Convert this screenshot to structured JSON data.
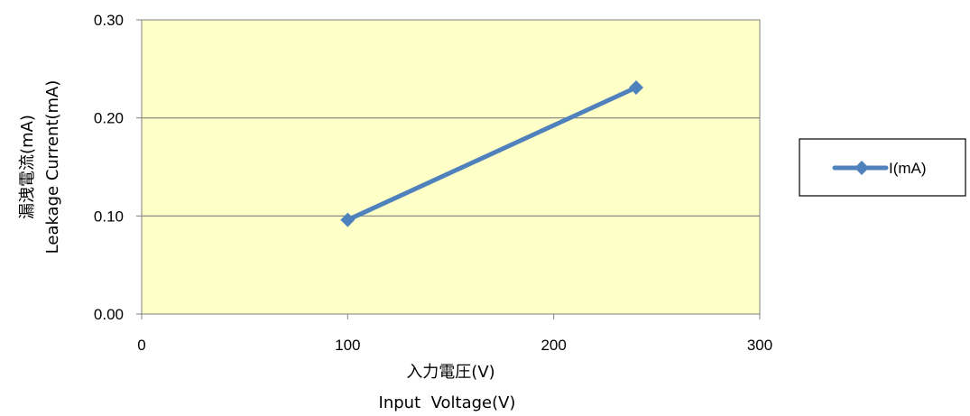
{
  "colors": {
    "plot_background": "#FFFFC8",
    "series_line": "#4F81BD",
    "gridline": "#808080",
    "frame": "#808080",
    "legend_border": "#000000"
  },
  "chart_data": {
    "type": "line",
    "xlabel_lines": [
      "入力電圧(V)",
      "Input  Voltage(V)"
    ],
    "ylabel_lines": [
      "漏洩電流(mA)",
      "Leakage Current(mA)"
    ],
    "xlim": [
      0,
      300
    ],
    "ylim": [
      0,
      0.3
    ],
    "x_ticks": [
      "0",
      "100",
      "200",
      "300"
    ],
    "y_ticks": [
      "0.00",
      "0.10",
      "0.20",
      "0.30"
    ],
    "grid": "horizontal",
    "legend_placement": "right",
    "marker": "diamond",
    "series": [
      {
        "name": "I(mA)",
        "x": [
          100,
          240
        ],
        "y": [
          0.096,
          0.231
        ]
      }
    ]
  }
}
